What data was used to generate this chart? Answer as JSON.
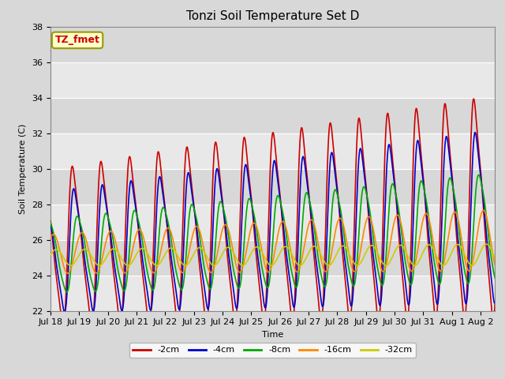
{
  "title": "Tonzi Soil Temperature Set D",
  "xlabel": "Time",
  "ylabel": "Soil Temperature (C)",
  "ylim": [
    22,
    38
  ],
  "xlim_days": [
    0,
    15.5
  ],
  "tick_labels": [
    "Jul 18",
    "Jul 19",
    "Jul 20",
    "Jul 21",
    "Jul 22",
    "Jul 23",
    "Jul 24",
    "Jul 25",
    "Jul 26",
    "Jul 27",
    "Jul 28",
    "Jul 29",
    "Jul 30",
    "Jul 31",
    "Aug 1",
    "Aug 2"
  ],
  "tick_positions": [
    0,
    1,
    2,
    3,
    4,
    5,
    6,
    7,
    8,
    9,
    10,
    11,
    12,
    13,
    14,
    15
  ],
  "series": {
    "neg2cm": {
      "label": "-2cm",
      "color": "#cc0000",
      "lw": 1.2
    },
    "neg4cm": {
      "label": "-4cm",
      "color": "#0000cc",
      "lw": 1.2
    },
    "neg8cm": {
      "label": "-8cm",
      "color": "#00aa00",
      "lw": 1.2
    },
    "neg16cm": {
      "label": "-16cm",
      "color": "#ff8800",
      "lw": 1.2
    },
    "neg32cm": {
      "label": "-32cm",
      "color": "#cccc00",
      "lw": 1.2
    }
  },
  "annotation_text": "TZ_fmet",
  "annotation_color": "#cc0000",
  "annotation_bg": "#ffffcc",
  "annotation_edge": "#999900",
  "bg_color": "#e8e8e8",
  "grid_color": "#ffffff",
  "title_fontsize": 11,
  "axis_fontsize": 8,
  "legend_fontsize": 8,
  "figsize": [
    6.4,
    4.8
  ],
  "dpi": 100
}
